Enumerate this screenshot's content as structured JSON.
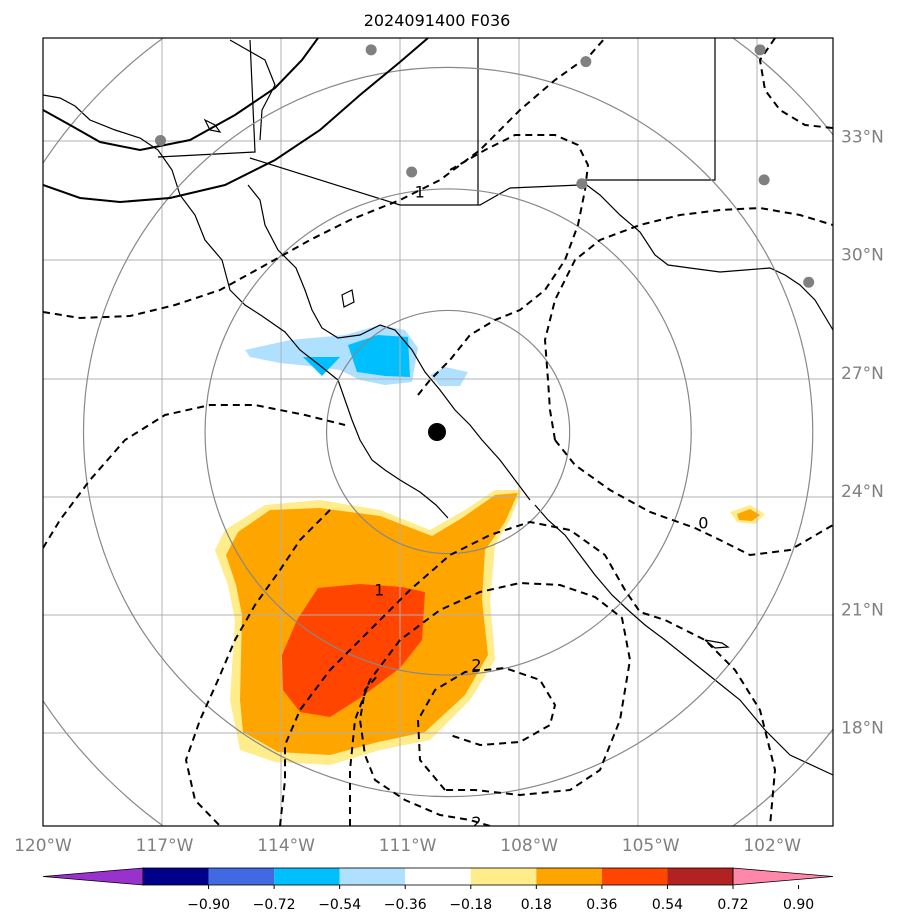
{
  "title": "2024091400 F036",
  "map": {
    "lon_range": [
      -120,
      -100.5
    ],
    "lat_range": [
      15.5,
      35.5
    ],
    "lon_ticks": [
      {
        "value": -120,
        "label": "120°W"
      },
      {
        "value": -117,
        "label": "117°W"
      },
      {
        "value": -114,
        "label": "114°W"
      },
      {
        "value": -111,
        "label": "111°W"
      },
      {
        "value": -108,
        "label": "108°W"
      },
      {
        "value": -105,
        "label": "105°W"
      },
      {
        "value": -102,
        "label": "102°W"
      }
    ],
    "lat_ticks": [
      {
        "value": 33,
        "label": "33°N"
      },
      {
        "value": 30,
        "label": "30°N"
      },
      {
        "value": 27,
        "label": "27°N"
      },
      {
        "value": 24,
        "label": "24°N"
      },
      {
        "value": 21,
        "label": "21°N"
      },
      {
        "value": 18,
        "label": "18°N"
      }
    ],
    "center": {
      "lon": -110,
      "lat": 25.5
    },
    "range_rings_deg": [
      3,
      6,
      9,
      12
    ],
    "stations": [
      {
        "lon": -111.9,
        "lat": 35.2
      },
      {
        "lon": -106.6,
        "lat": 34.9
      },
      {
        "lon": -102.3,
        "lat": 35.2
      },
      {
        "lon": -117.1,
        "lat": 32.9
      },
      {
        "lon": -110.9,
        "lat": 32.1
      },
      {
        "lon": -106.7,
        "lat": 31.8
      },
      {
        "lon": -102.2,
        "lat": 31.9
      },
      {
        "lon": -101.1,
        "lat": 29.3
      }
    ],
    "contour_labels": [
      {
        "text": "1",
        "lon": -110.7,
        "lat": 31.6
      },
      {
        "text": "0",
        "lon": -103.7,
        "lat": 23.2
      },
      {
        "text": "1",
        "lon": -111.7,
        "lat": 21.5
      },
      {
        "text": "2",
        "lon": -109.3,
        "lat": 19.6
      },
      {
        "text": "2",
        "lon": -109.3,
        "lat": 15.6
      }
    ]
  },
  "colorbar": {
    "colors": [
      "#9932cc",
      "#00008b",
      "#4169e1",
      "#00bfff",
      "#b0e0ff",
      "#ffffff",
      "#ffec8b",
      "#ffa500",
      "#ff4500",
      "#b22222",
      "#ff88aa"
    ],
    "tick_labels": [
      "−0.90",
      "−0.72",
      "−0.54",
      "−0.36",
      "−0.18",
      "0.18",
      "0.36",
      "0.54",
      "0.72",
      "0.90"
    ]
  }
}
